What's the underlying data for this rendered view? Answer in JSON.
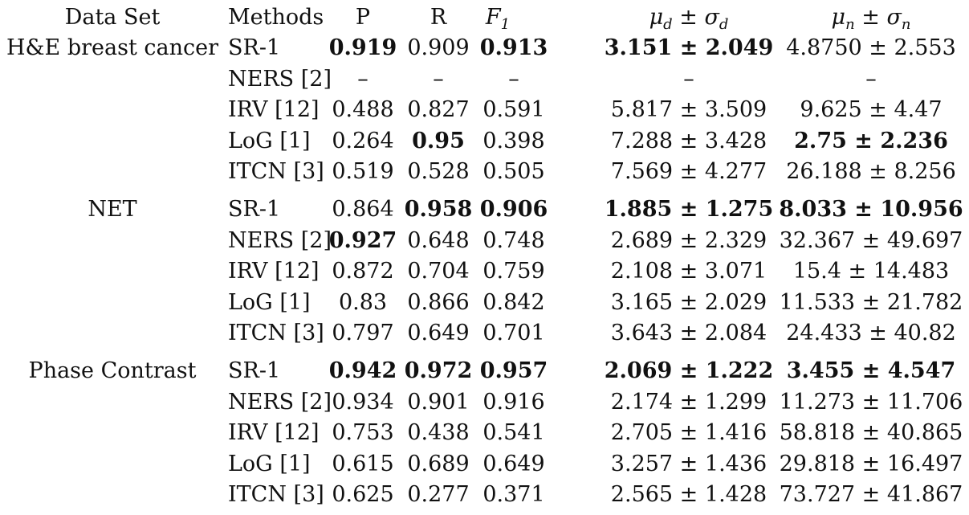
{
  "header": {
    "dataset": "Data Set",
    "methods": "Methods",
    "p": "P",
    "r": "R",
    "f1_main": "F",
    "f1_sub": "1",
    "mu_d": "μ",
    "mu_d_sub": "d",
    "pm": "±",
    "sigma_d": "σ",
    "sigma_d_sub": "d",
    "mu_n": "μ",
    "mu_n_sub": "n",
    "sigma_n": "σ",
    "sigma_n_sub": "n"
  },
  "groups": [
    {
      "dataset": "H&E breast cancer",
      "rows": [
        {
          "method": "SR-1",
          "p": "0.919",
          "r": "0.909",
          "f1": "0.913",
          "d": "3.151 ± 2.049",
          "n": "4.8750 ± 2.553",
          "bold": {
            "p": true,
            "r": false,
            "f1": true,
            "d": true,
            "n": false
          }
        },
        {
          "method": "NERS [2]",
          "p": "–",
          "r": "–",
          "f1": "–",
          "d": "–",
          "n": "–",
          "bold": {}
        },
        {
          "method": "IRV [12]",
          "p": "0.488",
          "r": "0.827",
          "f1": "0.591",
          "d": "5.817 ± 3.509",
          "n": "9.625 ± 4.47",
          "bold": {}
        },
        {
          "method": "LoG [1]",
          "p": "0.264",
          "r": "0.95",
          "f1": "0.398",
          "d": "7.288 ± 3.428",
          "n": "2.75 ± 2.236",
          "bold": {
            "r": true,
            "n": true
          }
        },
        {
          "method": "ITCN [3]",
          "p": "0.519",
          "r": "0.528",
          "f1": "0.505",
          "d": "7.569 ± 4.277",
          "n": "26.188 ± 8.256",
          "bold": {}
        }
      ]
    },
    {
      "dataset": "NET",
      "rows": [
        {
          "method": "SR-1",
          "p": "0.864",
          "r": "0.958",
          "f1": "0.906",
          "d": "1.885 ± 1.275",
          "n": "8.033 ± 10.956",
          "bold": {
            "r": true,
            "f1": true,
            "d": true,
            "n": true
          }
        },
        {
          "method": "NERS [2]",
          "p": "0.927",
          "r": "0.648",
          "f1": "0.748",
          "d": "2.689 ± 2.329",
          "n": "32.367 ± 49.697",
          "bold": {
            "p": true
          }
        },
        {
          "method": "IRV [12]",
          "p": "0.872",
          "r": "0.704",
          "f1": "0.759",
          "d": "2.108 ± 3.071",
          "n": "15.4 ± 14.483",
          "bold": {}
        },
        {
          "method": "LoG [1]",
          "p": "0.83",
          "r": "0.866",
          "f1": "0.842",
          "d": "3.165 ± 2.029",
          "n": "11.533 ± 21.782",
          "bold": {}
        },
        {
          "method": "ITCN [3]",
          "p": "0.797",
          "r": "0.649",
          "f1": "0.701",
          "d": "3.643 ± 2.084",
          "n": "24.433 ± 40.82",
          "bold": {}
        }
      ]
    },
    {
      "dataset": "Phase Contrast",
      "rows": [
        {
          "method": "SR-1",
          "p": "0.942",
          "r": "0.972",
          "f1": "0.957",
          "d": "2.069 ± 1.222",
          "n": "3.455 ± 4.547",
          "bold": {
            "p": true,
            "r": true,
            "f1": true,
            "d": true,
            "n": true
          }
        },
        {
          "method": "NERS [2]",
          "p": "0.934",
          "r": "0.901",
          "f1": "0.916",
          "d": "2.174 ± 1.299",
          "n": "11.273 ± 11.706",
          "bold": {}
        },
        {
          "method": "IRV [12]",
          "p": "0.753",
          "r": "0.438",
          "f1": "0.541",
          "d": "2.705 ± 1.416",
          "n": "58.818 ± 40.865",
          "bold": {}
        },
        {
          "method": "LoG [1]",
          "p": "0.615",
          "r": "0.689",
          "f1": "0.649",
          "d": "3.257 ± 1.436",
          "n": "29.818 ± 16.497",
          "bold": {}
        },
        {
          "method": "ITCN [3]",
          "p": "0.625",
          "r": "0.277",
          "f1": "0.371",
          "d": "2.565 ± 1.428",
          "n": "73.727 ± 41.867",
          "bold": {}
        }
      ]
    }
  ]
}
